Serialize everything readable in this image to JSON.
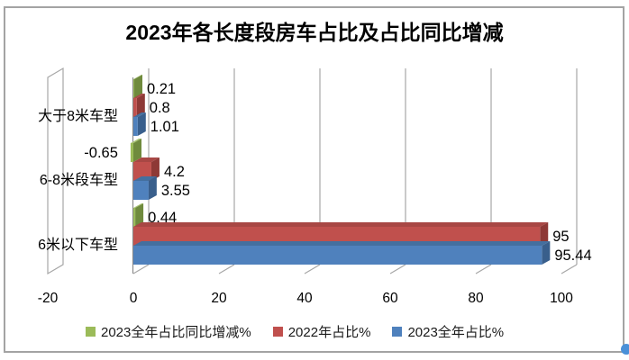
{
  "window": {
    "background": "#FFFFFF",
    "border_color": "#A3A3A3"
  },
  "chart_data": {
    "type": "bar",
    "orientation": "horizontal",
    "style": "3d",
    "title": "2023年各长度段房车占比及占比同比增减",
    "categories": [
      "大于8米车型",
      "6-8米段车型",
      "6米以下车型"
    ],
    "series": [
      {
        "name": "2023全年占比同比增减%",
        "color": "#9BBB59",
        "color_top": "#A9C472",
        "color_side": "#6F8A3D",
        "values": [
          0.21,
          -0.65,
          0.44
        ],
        "labels": [
          "0.21",
          "-0.65",
          "0.44"
        ]
      },
      {
        "name": "2022年占比%",
        "color": "#C0504D",
        "color_top": "#A84744",
        "color_side": "#8E3936",
        "values": [
          0.8,
          4.2,
          95
        ],
        "labels": [
          "0.8",
          "4.2",
          "95"
        ]
      },
      {
        "name": "2023全年占比%",
        "color": "#4F81BD",
        "color_top": "#446F9F",
        "color_side": "#395F8C",
        "values": [
          1.01,
          3.55,
          95.44
        ],
        "labels": [
          "1.01",
          "3.55",
          "95.44"
        ]
      }
    ],
    "x_axis": {
      "min": -20,
      "max": 100,
      "tick_interval": 20,
      "tick_labels": [
        "-20",
        "0",
        "20",
        "40",
        "60",
        "80",
        "100"
      ]
    },
    "legend_position": "bottom",
    "gridlines": true,
    "gridline_color": "#A6A6A6",
    "text_color": "#1A1A1A"
  },
  "decorations": {
    "corner_dot_color": "#4A90D8"
  }
}
